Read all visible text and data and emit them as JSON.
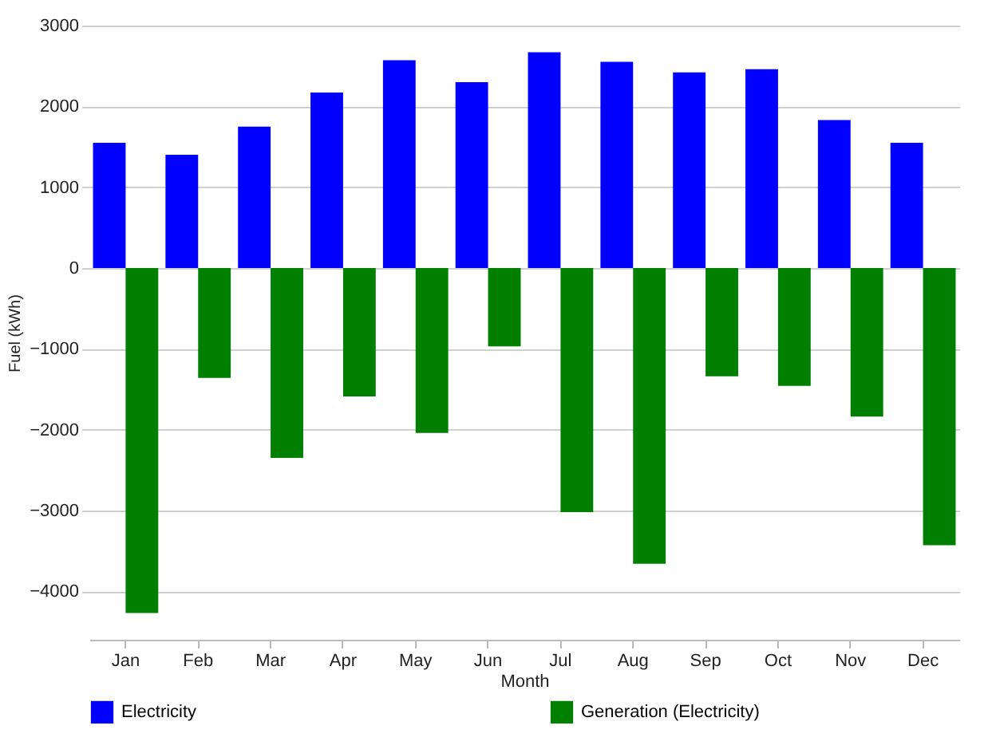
{
  "chart_data": {
    "type": "bar",
    "xlabel": "Month",
    "ylabel": "Fuel (kWh)",
    "categories": [
      "Jan",
      "Feb",
      "Mar",
      "Apr",
      "May",
      "Jun",
      "Jul",
      "Aug",
      "Sep",
      "Oct",
      "Nov",
      "Dec"
    ],
    "series": [
      {
        "name": "Electricity",
        "color": "#0000ff",
        "values": [
          1550,
          1400,
          1750,
          2170,
          2570,
          2300,
          2670,
          2550,
          2420,
          2460,
          1830,
          1550
        ]
      },
      {
        "name": "Generation (Electricity)",
        "color": "#007f00",
        "values": [
          -4270,
          -1360,
          -2350,
          -1590,
          -2040,
          -970,
          -3020,
          -3660,
          -1340,
          -1460,
          -1840,
          -3430
        ]
      }
    ],
    "ylim": [
      -4600,
      3000
    ],
    "yticks": [
      -4000,
      -3000,
      -2000,
      -1000,
      0,
      1000,
      2000,
      3000
    ],
    "grid": "y",
    "legend": "bottom"
  }
}
